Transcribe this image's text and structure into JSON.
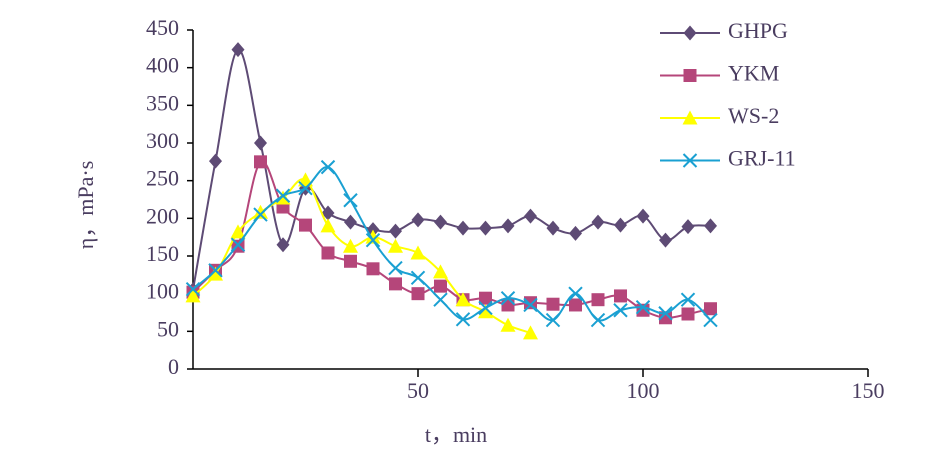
{
  "chart_data": {
    "type": "line",
    "x_label": "t，min",
    "y_label": "η，mPa·s",
    "x": [
      0,
      5,
      10,
      15,
      20,
      25,
      30,
      35,
      40,
      45,
      50,
      55,
      60,
      65,
      70,
      75,
      80,
      85,
      90,
      95,
      100,
      105,
      110,
      115
    ],
    "xlim": [
      0,
      150
    ],
    "xticks": [
      50,
      100,
      150
    ],
    "ylim": [
      0,
      450
    ],
    "yticks": [
      0,
      50,
      100,
      150,
      200,
      250,
      300,
      350,
      400,
      450
    ],
    "legend": "top-right",
    "series": [
      {
        "name": "GHPG",
        "color": "#5e4b75",
        "marker": "diamond",
        "values": [
          105,
          276,
          424,
          300,
          165,
          240,
          207,
          195,
          185,
          183,
          198,
          195,
          187,
          187,
          190,
          203,
          187,
          180,
          195,
          191,
          203,
          171,
          189,
          190
        ]
      },
      {
        "name": "YKM",
        "color": "#b5467a",
        "marker": "square",
        "values": [
          102,
          131,
          163,
          275,
          215,
          191,
          154,
          143,
          133,
          113,
          100,
          110,
          92,
          94,
          85,
          88,
          86,
          85,
          92,
          97,
          78,
          68,
          73,
          80
        ]
      },
      {
        "name": "WS-2",
        "color": "#ffff00",
        "marker": "triangle",
        "values": [
          97,
          126,
          182,
          208,
          227,
          251,
          190,
          163,
          175,
          163,
          154,
          129,
          92,
          76,
          58,
          48,
          null,
          null,
          null,
          null,
          null,
          null,
          null,
          null
        ]
      },
      {
        "name": "GRJ-11",
        "color": "#1aa0d2",
        "marker": "x",
        "values": [
          106,
          131,
          165,
          205,
          230,
          240,
          268,
          224,
          171,
          134,
          121,
          92,
          66,
          81,
          94,
          85,
          65,
          100,
          65,
          78,
          82,
          74,
          92,
          65
        ]
      }
    ]
  }
}
